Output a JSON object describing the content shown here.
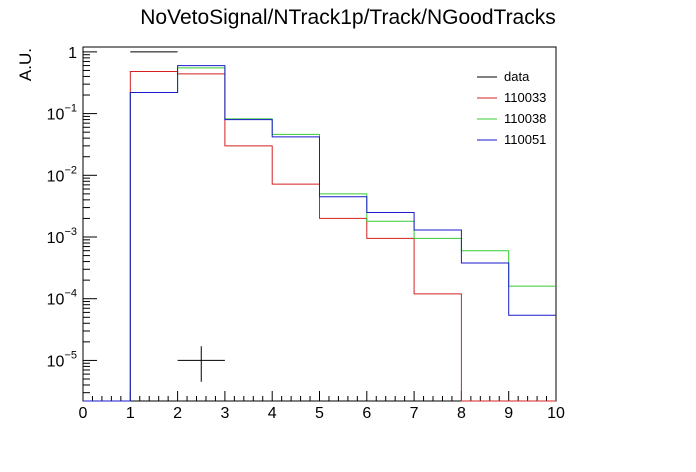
{
  "chart_data": {
    "type": "step",
    "title": "NoVetoSignal/NTrack1p/Track/NGoodTracks",
    "xlabel": "",
    "ylabel": "A.U.",
    "xlim": [
      0,
      10
    ],
    "ylim": [
      2.2e-06,
      1.2
    ],
    "yscale": "log",
    "grid": false,
    "legend_position": "top-right",
    "bin_edges": [
      0,
      1,
      2,
      3,
      4,
      5,
      6,
      7,
      8,
      9,
      10
    ],
    "x_tick_labels": [
      "0",
      "1",
      "2",
      "3",
      "4",
      "5",
      "6",
      "7",
      "8",
      "9",
      "10"
    ],
    "series": [
      {
        "name": "data",
        "color": "#000000",
        "style": "points",
        "points": [
          {
            "x": 2.5,
            "y": 1e-05,
            "x_err": 0.5,
            "y_low": 4.5e-06,
            "y_high": 1.7e-05
          }
        ],
        "segments": [
          {
            "x0": 1,
            "x1": 2,
            "y": 1.0
          }
        ]
      },
      {
        "name": "110033",
        "color": "#d42020",
        "style": "step",
        "values": [
          0,
          0.48,
          0.44,
          0.03,
          0.0072,
          0.002,
          0.00095,
          0.00012,
          0,
          0
        ]
      },
      {
        "name": "110038",
        "color": "#33cc33",
        "style": "step",
        "values": [
          0,
          0.22,
          0.55,
          0.082,
          0.046,
          0.005,
          0.0018,
          0.00095,
          0.0006,
          0.00016
        ]
      },
      {
        "name": "110051",
        "color": "#1a1acc",
        "style": "step",
        "values": [
          0,
          0.22,
          0.6,
          0.08,
          0.042,
          0.0045,
          0.0025,
          0.0013,
          0.00038,
          5.4e-05
        ]
      }
    ]
  }
}
